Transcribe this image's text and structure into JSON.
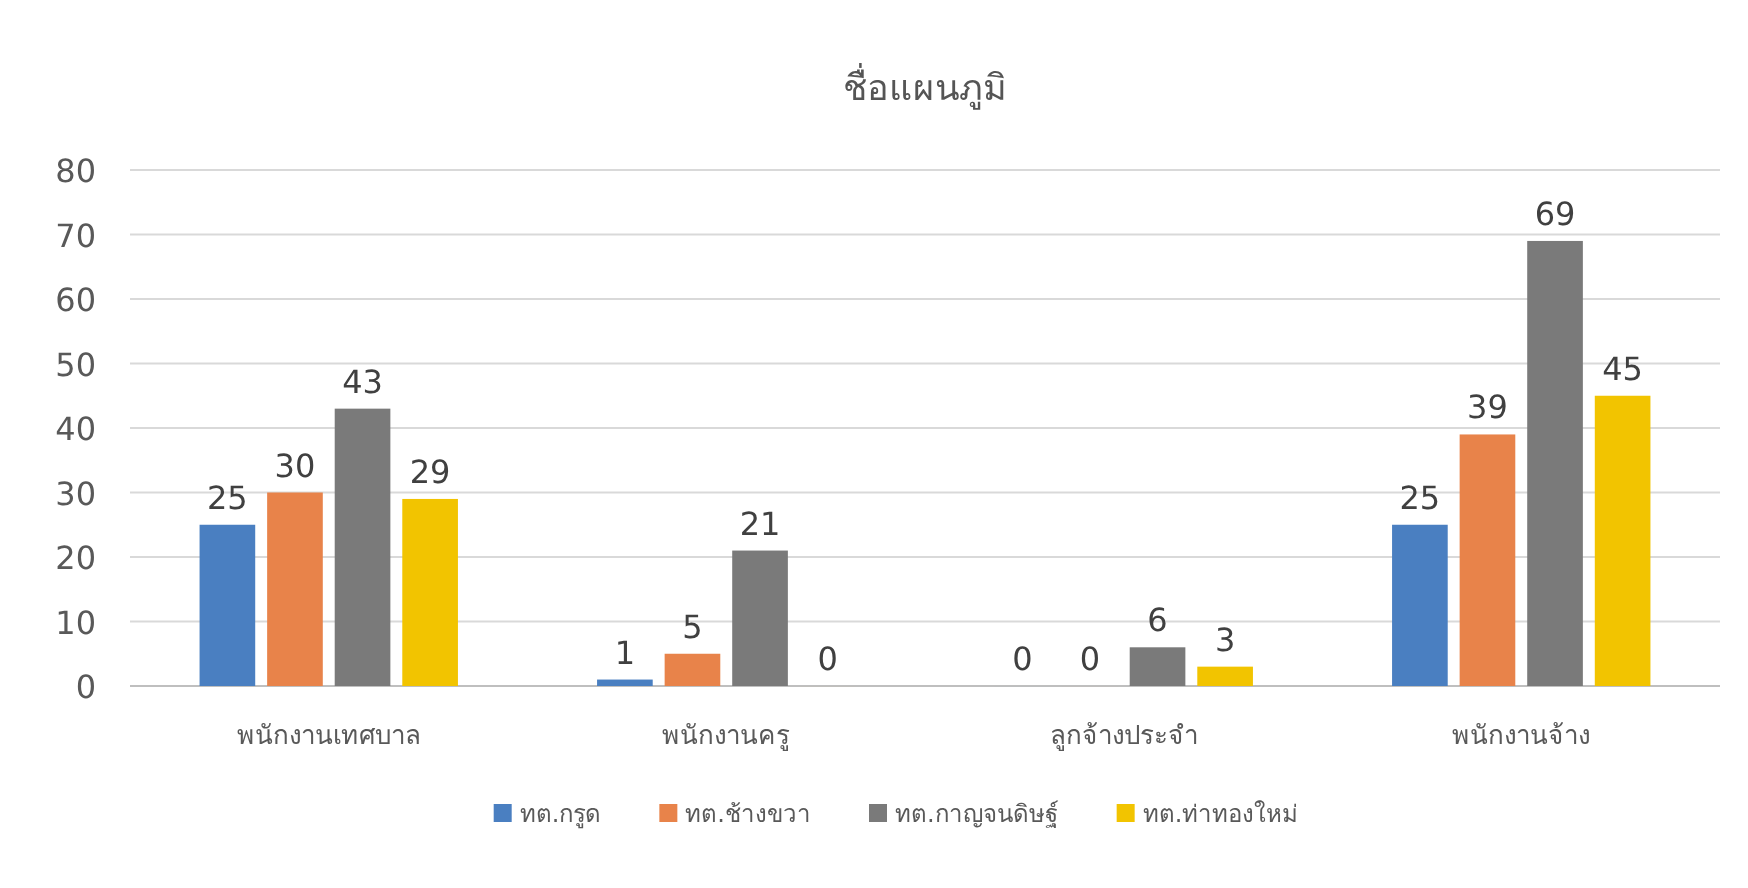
{
  "chart_data": {
    "type": "bar",
    "title": "ชื่อแผนภูมิ",
    "categories": [
      "พนักงานเทศบาล",
      "พนักงานครู",
      "ลูกจ้างประจำ",
      "พนักงานจ้าง"
    ],
    "series": [
      {
        "name": "ทต.กรูด",
        "color": "#4a7fc1",
        "values": [
          25,
          1,
          0,
          25
        ]
      },
      {
        "name": "ทต.ช้างขวา",
        "color": "#e8834a",
        "values": [
          30,
          5,
          0,
          39
        ]
      },
      {
        "name": "ทต.กาญจนดิษฐ์",
        "color": "#7a7a7a",
        "values": [
          43,
          21,
          6,
          69
        ]
      },
      {
        "name": "ทต.ท่าทองใหม่",
        "color": "#f2c400",
        "values": [
          29,
          0,
          3,
          45
        ]
      }
    ],
    "ylim": [
      0,
      80
    ],
    "yticks": [
      0,
      10,
      20,
      30,
      40,
      50,
      60,
      70,
      80
    ],
    "grid": "y",
    "legend": "bottom",
    "data_labels": true
  }
}
